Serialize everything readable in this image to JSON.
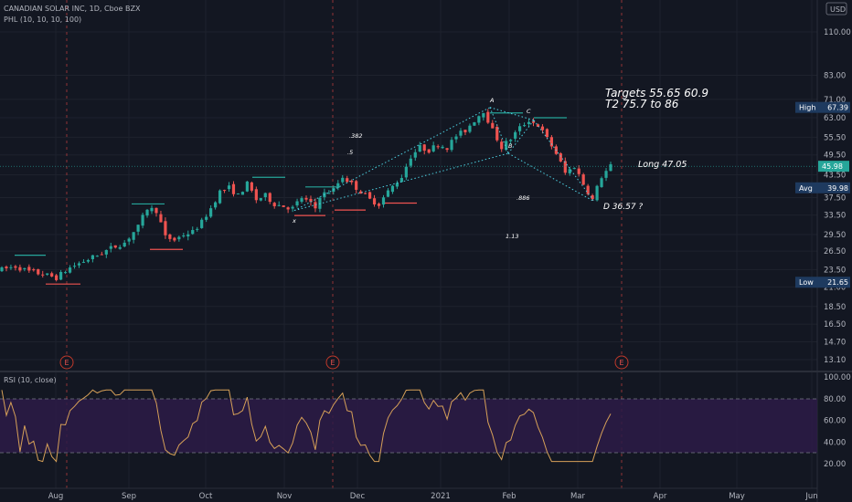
{
  "header": {
    "title": "CANADIAN SOLAR INC, 1D, Cboe BZX",
    "indicator": "PHL (10, 10, 10, 100)",
    "rsi_title": "RSI (10, close)",
    "currency": "USD"
  },
  "colors": {
    "background": "#131722",
    "up": "#26a69a",
    "down": "#ef5350",
    "rsi_line": "#d6a058",
    "rsi_band": "#2d1b47",
    "grid": "#1e222d",
    "last_price": "#26a69a",
    "tag_bg": "#1e3a5f"
  },
  "price_axis": {
    "ticks": [
      "110.00",
      "83.00",
      "71.00",
      "63.00",
      "55.50",
      "49.50",
      "43.50",
      "37.50",
      "33.50",
      "29.50",
      "26.50",
      "23.50",
      "21.00",
      "18.50",
      "16.50",
      "14.70",
      "13.10"
    ],
    "tags": [
      {
        "label": "High",
        "value": "67.39",
        "kind": "label"
      },
      {
        "label": "",
        "value": "45.98",
        "kind": "last"
      },
      {
        "label": "Avg",
        "value": "39.98",
        "kind": "label"
      },
      {
        "label": "Low",
        "value": "21.65",
        "kind": "label"
      }
    ]
  },
  "rsi_axis": {
    "ticks": [
      "100.00",
      "80.00",
      "60.00",
      "40.00",
      "20.00"
    ]
  },
  "time_axis": {
    "ticks": [
      "Aug",
      "Sep",
      "Oct",
      "Nov",
      "Dec",
      "2021",
      "Feb",
      "Mar",
      "Apr",
      "May",
      "Jun"
    ]
  },
  "annotations": {
    "targets": "Targets   55.65   60.9",
    "t2": "T2  75.7   to 86",
    "long": "Long 47.05",
    "d_point": "D  36.57  ?",
    "fib_382": ".382",
    "fib_5": ".5",
    "fib_886": ".886",
    "fib_113": "1.13",
    "pt_x": "x",
    "pt_a": "A",
    "pt_b": "B",
    "pt_c": "C"
  },
  "earnings": {
    "label": "E"
  },
  "chart_data": [
    {
      "type": "candlestick",
      "title": "CANADIAN SOLAR INC, 1D, Cboe BZX",
      "x": [
        "2020-07",
        "2020-08",
        "2020-09",
        "2020-10",
        "2020-11",
        "2020-12",
        "2021-01",
        "2021-02",
        "2021-03"
      ],
      "series": [
        {
          "name": "",
          "values": [
            22.5,
            27.5,
            29.5,
            41.0,
            37.0,
            45.0,
            55.0,
            62.0,
            45.98
          ]
        }
      ],
      "price_tags": {
        "high": 67.39,
        "last": 45.98,
        "avg": 39.98,
        "low": 21.65
      },
      "harmonic_points": {
        "X": 34.5,
        "A": 67.39,
        "B": 50.0,
        "C": 62.0,
        "D": 36.57
      },
      "notes": {
        "targets": [
          55.65,
          60.9
        ],
        "t2": [
          75.7,
          86
        ],
        "long": 47.05
      },
      "y_scale": "log",
      "ylim": [
        13.1,
        110.0
      ]
    },
    {
      "type": "line",
      "title": "RSI (10, close)",
      "x": [
        "2020-07",
        "2020-08",
        "2020-09",
        "2020-10",
        "2020-11",
        "2020-12",
        "2021-01",
        "2021-02",
        "2021-03"
      ],
      "series": [
        {
          "name": "",
          "values": [
            68,
            65,
            78,
            80,
            60,
            70,
            70,
            40,
            48
          ]
        }
      ],
      "bands": [
        30,
        70
      ],
      "ylim": [
        0,
        100
      ]
    }
  ]
}
